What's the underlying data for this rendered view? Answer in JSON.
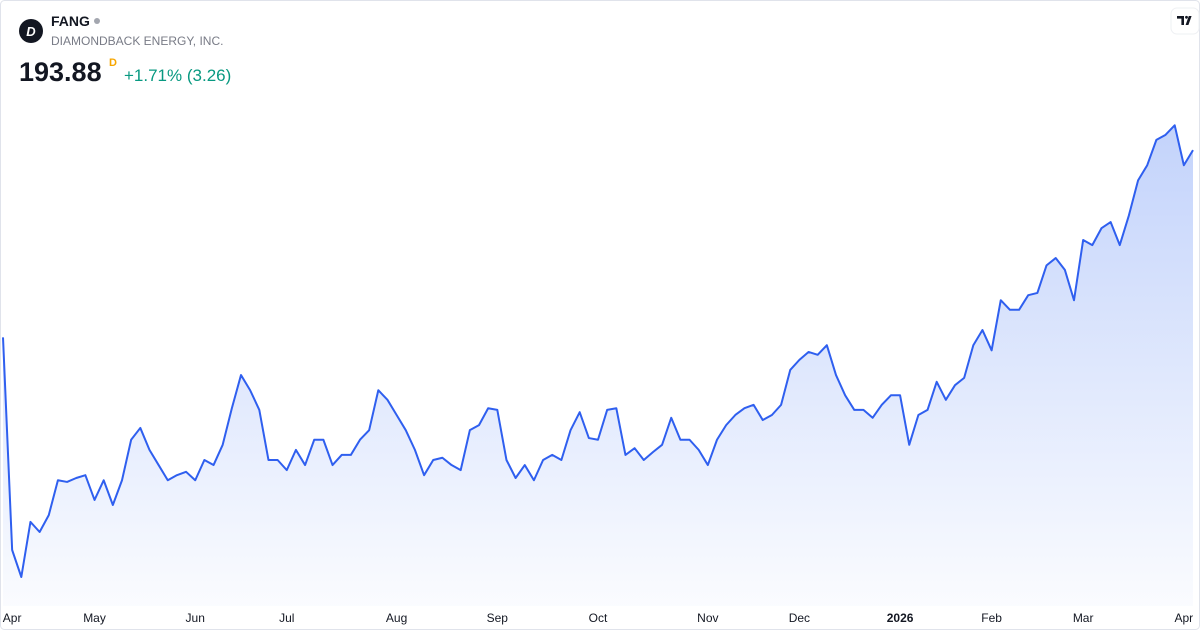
{
  "header": {
    "symbol": "FANG",
    "name": "DIAMONDBACK ENERGY, INC.",
    "price": "193.88",
    "interval": "D",
    "change": "+1.71% (3.26)"
  },
  "chart_data": {
    "type": "area",
    "color": "#2f5fef",
    "categories": [
      null,
      "Apr",
      null,
      null,
      null,
      null,
      null,
      null,
      null,
      null,
      "May",
      null,
      null,
      null,
      null,
      null,
      null,
      null,
      null,
      null,
      null,
      "Jun",
      null,
      null,
      null,
      null,
      null,
      null,
      null,
      null,
      null,
      "Jul",
      null,
      null,
      null,
      null,
      null,
      null,
      null,
      null,
      null,
      null,
      null,
      "Aug",
      null,
      null,
      null,
      null,
      null,
      null,
      null,
      null,
      null,
      null,
      "Sep",
      null,
      null,
      null,
      null,
      null,
      null,
      null,
      null,
      null,
      null,
      "Oct",
      null,
      null,
      null,
      null,
      null,
      null,
      null,
      null,
      null,
      null,
      null,
      "Nov",
      null,
      null,
      null,
      null,
      null,
      null,
      null,
      null,
      null,
      "Dec",
      null,
      null,
      null,
      null,
      null,
      null,
      null,
      null,
      null,
      null,
      "2026",
      null,
      null,
      null,
      null,
      null,
      null,
      null,
      null,
      null,
      "Feb",
      null,
      null,
      null,
      null,
      null,
      null,
      null,
      null,
      null,
      "Mar",
      null,
      null,
      null,
      null,
      null,
      null,
      null,
      null,
      null,
      null,
      "Apr",
      null
    ],
    "values": [
      160.6,
      122.8,
      118.0,
      127.8,
      126.0,
      129.0,
      135.2,
      134.9,
      135.6,
      136.1,
      131.7,
      135.2,
      130.8,
      135.2,
      142.4,
      144.5,
      140.6,
      137.9,
      135.2,
      136.1,
      136.7,
      135.2,
      138.8,
      137.9,
      141.5,
      148.0,
      153.9,
      151.2,
      147.7,
      138.8,
      138.8,
      137.0,
      140.6,
      137.9,
      142.4,
      142.4,
      137.9,
      139.7,
      139.7,
      142.4,
      144.1,
      151.2,
      149.5,
      146.8,
      144.1,
      140.6,
      136.1,
      138.8,
      139.2,
      137.9,
      137.0,
      144.1,
      145.0,
      148.0,
      147.7,
      138.8,
      135.6,
      137.9,
      135.2,
      138.8,
      139.7,
      138.8,
      144.1,
      147.3,
      142.7,
      142.4,
      147.7,
      148.0,
      139.7,
      140.9,
      138.8,
      140.2,
      141.5,
      146.3,
      142.4,
      142.4,
      140.6,
      137.9,
      142.4,
      145.0,
      146.8,
      148.0,
      148.6,
      145.9,
      146.8,
      148.6,
      154.8,
      156.6,
      158.0,
      157.5,
      159.2,
      153.9,
      150.3,
      147.7,
      147.7,
      146.3,
      148.6,
      150.3,
      150.3,
      141.5,
      146.8,
      147.7,
      152.7,
      149.5,
      152.1,
      153.4,
      159.2,
      161.9,
      158.3,
      167.2,
      165.5,
      165.5,
      168.1,
      168.5,
      173.4,
      174.7,
      172.6,
      167.2,
      177.9,
      177.0,
      180.0,
      181.1,
      177.0,
      182.3,
      188.5,
      191.2,
      195.7,
      196.6,
      198.3,
      191.2,
      193.88
    ]
  }
}
